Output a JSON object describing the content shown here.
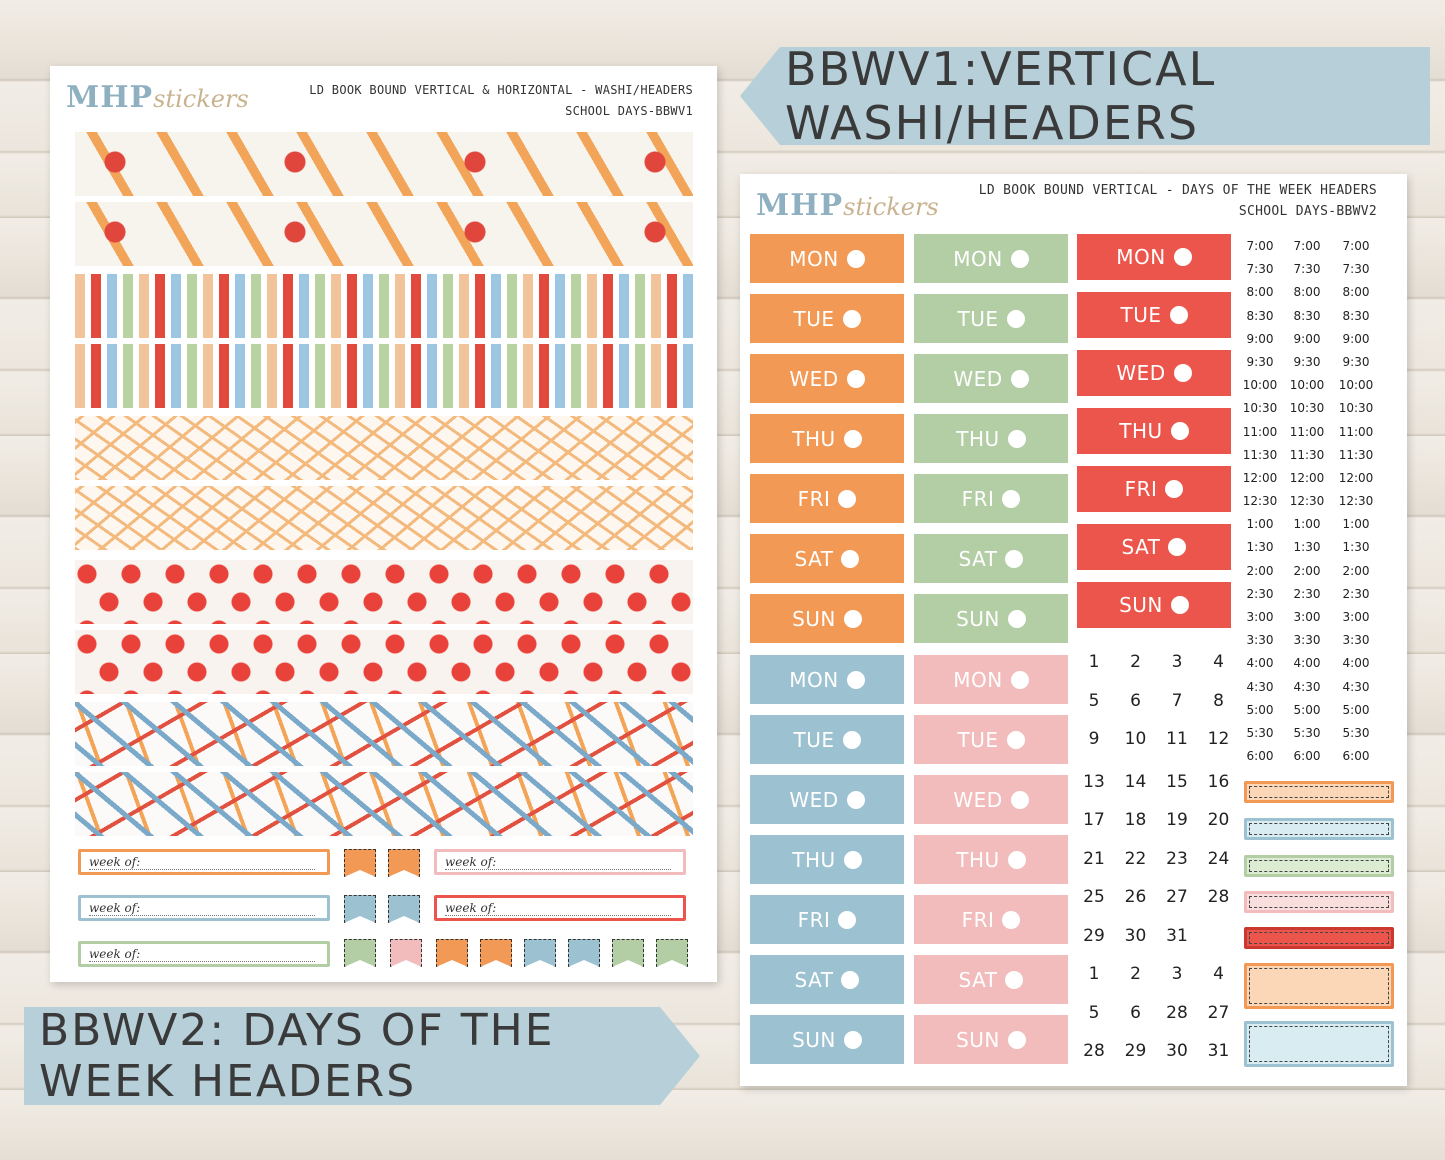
{
  "banners": {
    "vertical": "BBWV1:VERTICAL WASHI/HEADERS",
    "days": "BBWV2: DAYS OF THE WEEK HEADERS"
  },
  "logo": {
    "brand": "MHP",
    "sub": "stickers"
  },
  "sheet1": {
    "title_line1": "LD BOOK BOUND VERTICAL & HORIZONTAL - WASHI/HEADERS",
    "title_line2": "SCHOOL DAYS-BBWV1",
    "week_label": "week of:"
  },
  "sheet2": {
    "title_line1": "LD BOOK BOUND VERTICAL - DAYS OF THE WEEK HEADERS",
    "title_line2": "SCHOOL DAYS-BBWV2",
    "days": [
      "MON",
      "TUE",
      "WED",
      "THU",
      "FRI",
      "SAT",
      "SUN"
    ],
    "times": [
      "7:00",
      "7:30",
      "8:00",
      "8:30",
      "9:00",
      "9:30",
      "10:00",
      "10:30",
      "11:00",
      "11:30",
      "12:00",
      "12:30",
      "1:00",
      "1:30",
      "2:00",
      "2:30",
      "3:00",
      "3:30",
      "4:00",
      "4:30",
      "5:00",
      "5:30",
      "6:00"
    ],
    "dates": [
      [
        "1",
        "2",
        "3",
        "4"
      ],
      [
        "5",
        "6",
        "7",
        "8"
      ],
      [
        "9",
        "10",
        "11",
        "12"
      ],
      [
        "13",
        "14",
        "15",
        "16"
      ],
      [
        "17",
        "18",
        "19",
        "20"
      ],
      [
        "21",
        "22",
        "23",
        "24"
      ],
      [
        "25",
        "26",
        "27",
        "28"
      ],
      [
        "29",
        "30",
        "31",
        ""
      ],
      [
        "1",
        "2",
        "3",
        "4"
      ],
      [
        "5",
        "6",
        "28",
        "27"
      ],
      [
        "28",
        "29",
        "30",
        "31"
      ]
    ]
  },
  "colors": {
    "orange": "#f29a55",
    "green": "#b3cda5",
    "red": "#ec554b",
    "blue": "#9cc1d0",
    "pink": "#f2bcbc",
    "banner": "#b7cfd8"
  }
}
